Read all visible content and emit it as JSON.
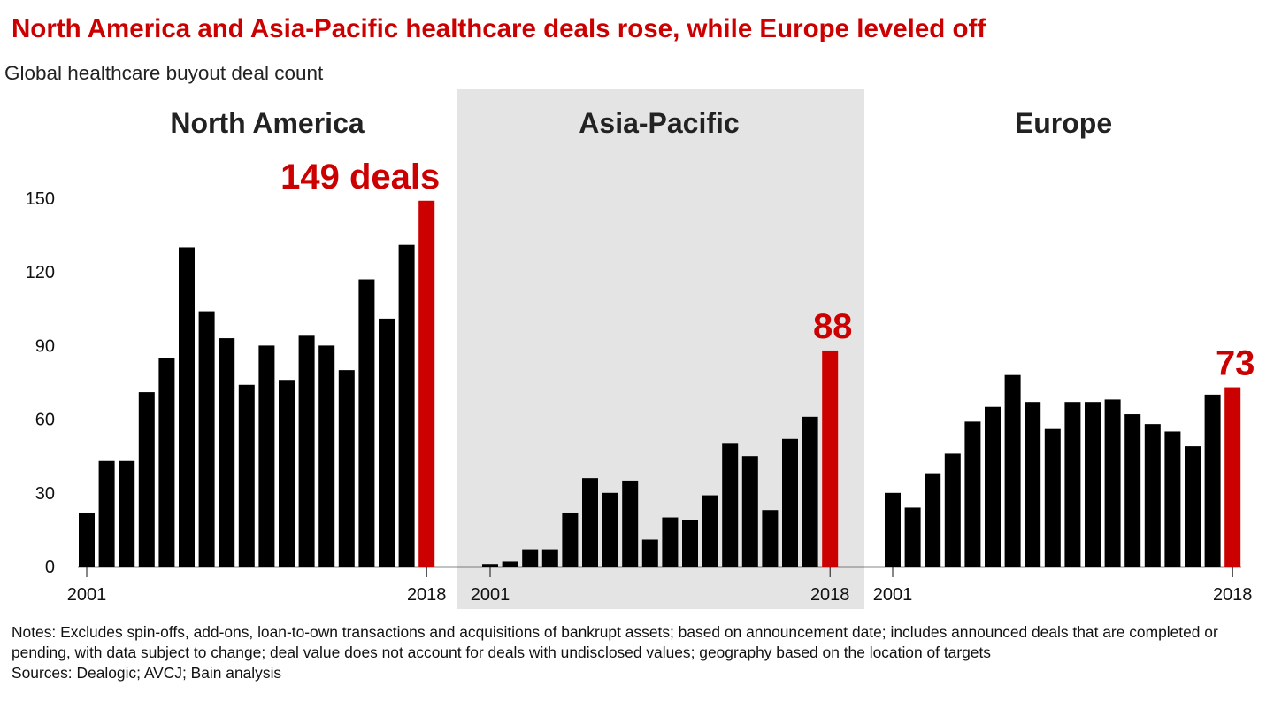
{
  "chart_data": {
    "type": "bar",
    "title": "North America and Asia-Pacific healthcare deals rose, while Europe leveled off",
    "subtitle": "Global healthcare buyout deal count",
    "ylim": [
      0,
      150
    ],
    "yticks": [
      "0",
      "30",
      "60",
      "90",
      "120",
      "150"
    ],
    "ytick_values": [
      0,
      30,
      60,
      90,
      120,
      150
    ],
    "grid": false,
    "x": [
      2001,
      2002,
      2003,
      2004,
      2005,
      2006,
      2007,
      2008,
      2009,
      2010,
      2011,
      2012,
      2013,
      2014,
      2015,
      2016,
      2017,
      2018
    ],
    "panels": [
      {
        "name": "North America",
        "values": [
          22,
          43,
          43,
          71,
          85,
          130,
          104,
          93,
          74,
          90,
          76,
          94,
          90,
          80,
          117,
          101,
          131,
          149
        ],
        "callout": "149 deals",
        "xtick_labels": [
          "2001",
          "2018"
        ],
        "shaded": false
      },
      {
        "name": "Asia-Pacific",
        "values": [
          1,
          2,
          7,
          7,
          22,
          36,
          30,
          35,
          11,
          20,
          19,
          29,
          50,
          45,
          23,
          52,
          61,
          88
        ],
        "callout": "88",
        "xtick_labels": [
          "2001",
          "2018"
        ],
        "shaded": true
      },
      {
        "name": "Europe",
        "values": [
          30,
          24,
          38,
          46,
          59,
          65,
          78,
          67,
          56,
          67,
          67,
          68,
          62,
          58,
          55,
          49,
          70,
          73
        ],
        "callout": "73",
        "xtick_labels": [
          "2001",
          "2018"
        ],
        "shaded": false
      }
    ],
    "colors": {
      "bar": "#000000",
      "highlight": "#cc0000",
      "title": "#cc0000",
      "panel_shade": "#e4e4e4"
    }
  },
  "notes": "Notes: Excludes spin-offs, add-ons, loan-to-own transactions and acquisitions of bankrupt assets; based on announcement date; includes announced deals that are completed or pending, with data subject to change; deal value does not account for deals with undisclosed values; geography based on the location of targets",
  "sources": "Sources: Dealogic; AVCJ; Bain analysis"
}
